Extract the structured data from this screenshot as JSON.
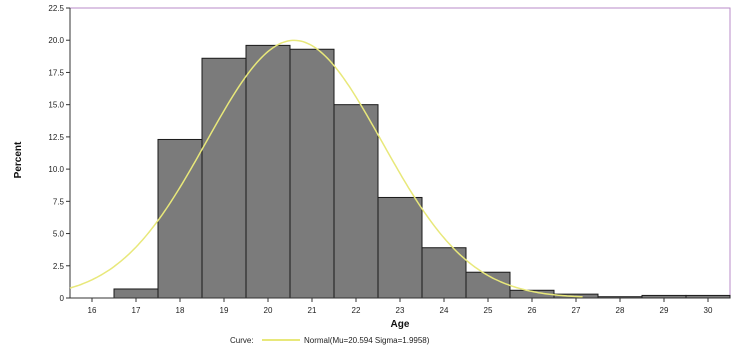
{
  "chart_data": {
    "type": "bar",
    "subtype": "histogram-with-normal-curve",
    "xlabel": "Age",
    "ylabel": "Percent",
    "x_ticks": [
      16,
      17,
      18,
      19,
      20,
      21,
      22,
      23,
      24,
      25,
      26,
      27,
      28,
      29,
      30
    ],
    "y_ticks": [
      "0",
      "2.5",
      "5.0",
      "7.5",
      "10.0",
      "12.5",
      "15.0",
      "17.5",
      "20.0",
      "22.5"
    ],
    "xlim": [
      15.5,
      30.5
    ],
    "ylim": [
      0,
      22.5
    ],
    "bin_width": 1,
    "bins": [
      {
        "x": 17,
        "value": 0.7
      },
      {
        "x": 18,
        "value": 12.3
      },
      {
        "x": 19,
        "value": 18.6
      },
      {
        "x": 20,
        "value": 19.6
      },
      {
        "x": 21,
        "value": 19.3
      },
      {
        "x": 22,
        "value": 15.0
      },
      {
        "x": 23,
        "value": 7.8
      },
      {
        "x": 24,
        "value": 3.9
      },
      {
        "x": 25,
        "value": 2.0
      },
      {
        "x": 26,
        "value": 0.6
      },
      {
        "x": 27,
        "value": 0.3
      },
      {
        "x": 28,
        "value": 0.1
      },
      {
        "x": 29,
        "value": 0.2
      },
      {
        "x": 30,
        "value": 0.2
      }
    ],
    "curve": {
      "mu": 20.594,
      "sigma": 1.9958
    },
    "legend": {
      "label": "Curve:",
      "entry": "Normal(Mu=20.594 Sigma=1.9958)"
    },
    "colors": {
      "bar": "#7b7b7b",
      "bar_edge": "#1a1a1a",
      "curve": "#e8e87a",
      "frame": "#b98bc9"
    },
    "grid": false
  }
}
